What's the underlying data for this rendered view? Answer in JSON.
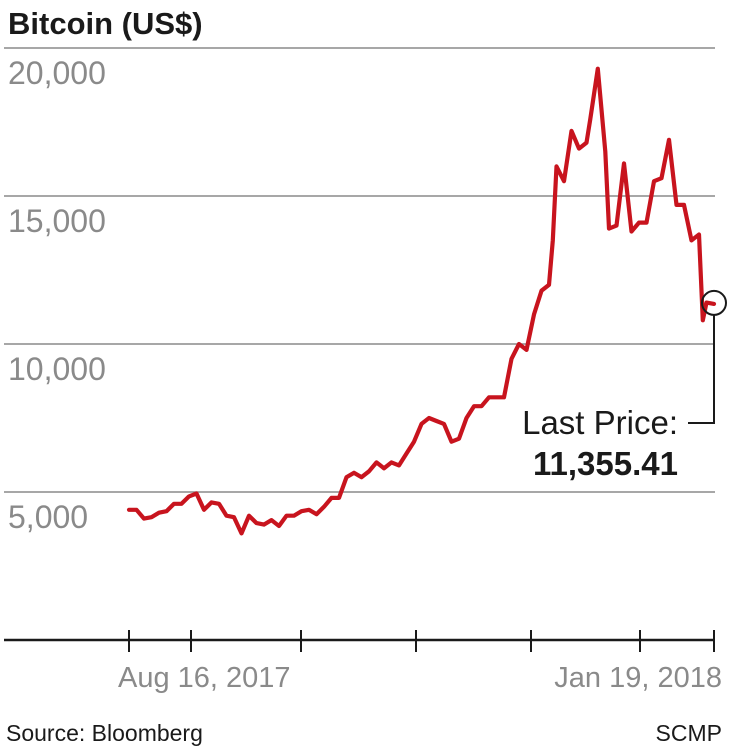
{
  "title": "Bitcoin (US$)",
  "source": "Source: Bloomberg",
  "credit": "SCMP",
  "colors": {
    "line": "#c8141e",
    "grid": "#8a8a8a",
    "axis": "#1a1a1a",
    "tick_text": "#8a8a8a"
  },
  "chart_data": {
    "type": "line",
    "title": "Bitcoin (US$)",
    "xlabel": "",
    "ylabel": "",
    "ylim": [
      0,
      20000
    ],
    "yticks": [
      5000,
      10000,
      15000,
      20000
    ],
    "ytick_labels": [
      "5,000",
      "10,000",
      "15,000",
      "20,000"
    ],
    "grid": true,
    "xticks_labels": [
      "Aug 16, 2017",
      "Jan 19, 2018"
    ],
    "x_range": [
      "2017-08-16",
      "2018-01-19"
    ],
    "annotation": {
      "label": "Last Price:",
      "value": "11,355.41"
    },
    "series": [
      {
        "x": [
          "2017-08-16",
          "2017-08-18",
          "2017-08-20",
          "2017-08-22",
          "2017-08-24",
          "2017-08-26",
          "2017-08-28",
          "2017-08-30",
          "2017-09-01",
          "2017-09-03",
          "2017-09-05",
          "2017-09-07",
          "2017-09-09",
          "2017-09-11",
          "2017-09-13",
          "2017-09-15",
          "2017-09-17",
          "2017-09-19",
          "2017-09-21",
          "2017-09-23",
          "2017-09-25",
          "2017-09-27",
          "2017-09-29",
          "2017-10-01",
          "2017-10-03",
          "2017-10-05",
          "2017-10-07",
          "2017-10-09",
          "2017-10-11",
          "2017-10-13",
          "2017-10-15",
          "2017-10-17",
          "2017-10-19",
          "2017-10-21",
          "2017-10-23",
          "2017-10-25",
          "2017-10-27",
          "2017-10-29",
          "2017-10-31",
          "2017-11-02",
          "2017-11-04",
          "2017-11-06",
          "2017-11-08",
          "2017-11-10",
          "2017-11-12",
          "2017-11-14",
          "2017-11-16",
          "2017-11-18",
          "2017-11-20",
          "2017-11-22",
          "2017-11-24",
          "2017-11-26",
          "2017-11-28",
          "2017-11-30",
          "2017-12-02",
          "2017-12-04",
          "2017-12-06",
          "2017-12-07",
          "2017-12-08",
          "2017-12-10",
          "2017-12-12",
          "2017-12-14",
          "2017-12-16",
          "2017-12-17",
          "2017-12-19",
          "2017-12-21",
          "2017-12-22",
          "2017-12-24",
          "2017-12-26",
          "2017-12-28",
          "2017-12-30",
          "2018-01-01",
          "2018-01-03",
          "2018-01-05",
          "2018-01-07",
          "2018-01-09",
          "2018-01-11",
          "2018-01-13",
          "2018-01-15",
          "2018-01-16",
          "2018-01-17",
          "2018-01-19"
        ],
        "values": [
          4400,
          4400,
          4100,
          4150,
          4300,
          4350,
          4600,
          4600,
          4850,
          4950,
          4400,
          4650,
          4600,
          4200,
          4150,
          3600,
          4200,
          3950,
          3900,
          4050,
          3850,
          4200,
          4200,
          4350,
          4400,
          4250,
          4500,
          4800,
          4800,
          5500,
          5650,
          5500,
          5700,
          6000,
          5800,
          6000,
          5900,
          6300,
          6700,
          7300,
          7500,
          7400,
          7300,
          6700,
          6800,
          7500,
          7900,
          7900,
          8200,
          8200,
          8200,
          9500,
          10000,
          9800,
          11000,
          11800,
          12000,
          13500,
          16000,
          15500,
          17200,
          16600,
          16800,
          17600,
          19300,
          16500,
          13900,
          14000,
          16100,
          13800,
          14100,
          14100,
          15500,
          15600,
          16900,
          14700,
          14700,
          13500,
          13700,
          10800,
          11400,
          11355
        ]
      }
    ]
  }
}
